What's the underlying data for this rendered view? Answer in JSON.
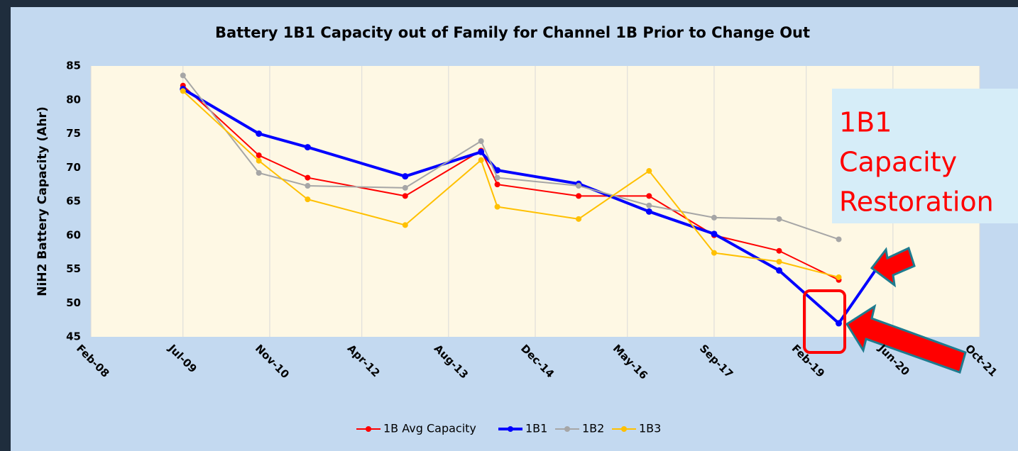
{
  "chart_data": {
    "type": "line",
    "title": "Battery 1B1 Capacity out of Family for Channel 1B Prior to Change Out",
    "y_label": "NiH2 Battery Capacity (Ahr)",
    "annotation": [
      "1B1",
      "Capacity",
      "Restoration"
    ],
    "x": [
      "2009-07",
      "2010-09",
      "2011-06",
      "2012-12",
      "2014-02",
      "2014-05",
      "2015-08",
      "2016-09",
      "2017-09",
      "2018-09",
      "2019-08",
      "2020-03"
    ],
    "xlim": [
      "2008-02",
      "2021-10"
    ],
    "xticks": [
      {
        "value": "2008-02",
        "label": "Feb-08"
      },
      {
        "value": "2009-07",
        "label": "Jul-09"
      },
      {
        "value": "2010-11",
        "label": "Nov-10"
      },
      {
        "value": "2012-04",
        "label": "Apr-12"
      },
      {
        "value": "2013-08",
        "label": "Aug-13"
      },
      {
        "value": "2014-12",
        "label": "Dec-14"
      },
      {
        "value": "2016-05",
        "label": "May-16"
      },
      {
        "value": "2017-09",
        "label": "Sep-17"
      },
      {
        "value": "2019-02",
        "label": "Feb-19"
      },
      {
        "value": "2020-06",
        "label": "Jun-20"
      },
      {
        "value": "2021-10",
        "label": "Oct-21"
      }
    ],
    "ylim": [
      45,
      85
    ],
    "yticks": [
      45,
      50,
      55,
      60,
      65,
      70,
      75,
      80,
      85
    ],
    "grid": "x",
    "legend": "bottom",
    "series": [
      {
        "name": "1B Avg Capacity",
        "color": "#ff0000",
        "width": 2,
        "values": [
          82.1,
          71.8,
          68.5,
          65.8,
          72.5,
          67.5,
          65.8,
          65.8,
          60.0,
          57.7,
          53.4,
          null
        ]
      },
      {
        "name": "1B1",
        "color": "#0000ff",
        "width": 4,
        "values": [
          81.6,
          75.0,
          73.0,
          68.7,
          72.3,
          69.6,
          67.6,
          63.5,
          60.2,
          54.8,
          47.0,
          55.1
        ]
      },
      {
        "name": "1B2",
        "color": "#a6a6a6",
        "width": 2,
        "values": [
          83.6,
          69.2,
          67.3,
          67.0,
          73.9,
          68.5,
          67.3,
          64.4,
          62.6,
          62.4,
          59.4,
          null
        ]
      },
      {
        "name": "1B3",
        "color": "#ffc000",
        "width": 2,
        "values": [
          81.3,
          71.0,
          65.3,
          61.5,
          71.1,
          64.2,
          62.4,
          69.5,
          57.4,
          56.1,
          53.8,
          null
        ]
      }
    ]
  }
}
